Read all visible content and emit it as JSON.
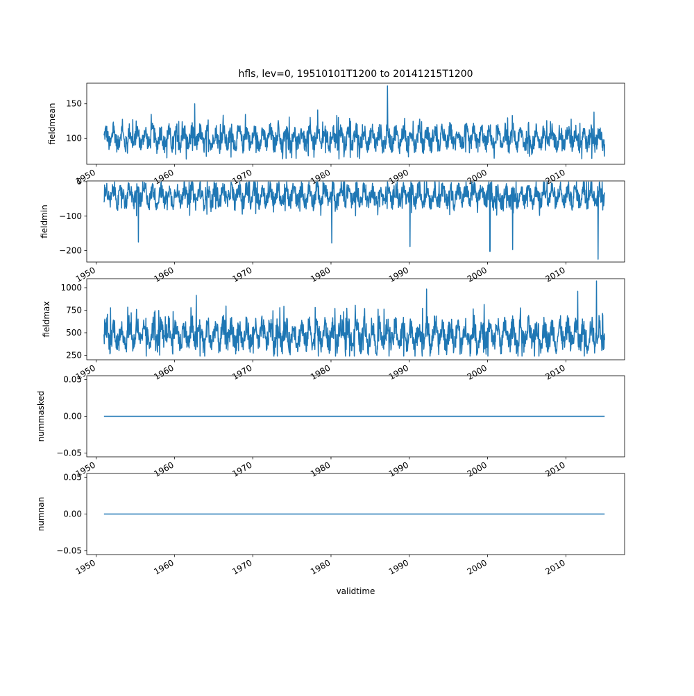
{
  "figure": {
    "title": "hfls, lev=0, 19510101T1200 to 20141215T1200",
    "xlabel": "validtime",
    "line_color": "#1f77b4"
  },
  "chart_data": [
    {
      "type": "line",
      "ylabel": "fieldmean",
      "xlim": [
        1948.8,
        2017.5
      ],
      "ylim": [
        62,
        180
      ],
      "yticks": [
        "100",
        "150"
      ],
      "ytick_values": [
        100,
        150
      ],
      "xticks": [
        "1950",
        "1960",
        "1970",
        "1980",
        "1990",
        "2000",
        "2010"
      ],
      "xtick_values": [
        1950,
        1960,
        1970,
        1980,
        1990,
        2000,
        2010
      ],
      "x_range": [
        1951.0,
        2014.95
      ],
      "series_summary": {
        "typical_low": 82,
        "typical_high": 118,
        "min": 66,
        "max": 176
      },
      "spikes": [
        {
          "x": 1962.6,
          "y": 150
        },
        {
          "x": 1978.3,
          "y": 141
        },
        {
          "x": 1987.2,
          "y": 176
        },
        {
          "x": 2013.6,
          "y": 138
        }
      ]
    },
    {
      "type": "line",
      "ylabel": "fieldmin",
      "xlim": [
        1948.8,
        2017.5
      ],
      "ylim": [
        -233,
        2
      ],
      "yticks": [
        "−200",
        "−100",
        "0"
      ],
      "ytick_values": [
        -200,
        -100,
        0
      ],
      "xticks": [
        "1950",
        "1960",
        "1970",
        "1980",
        "1990",
        "2000",
        "2010"
      ],
      "xtick_values": [
        1950,
        1960,
        1970,
        1980,
        1990,
        2000,
        2010
      ],
      "x_range": [
        1951.0,
        2014.95
      ],
      "series_summary": {
        "typical_low": -75,
        "typical_high": -5,
        "min": -225,
        "max": -1
      },
      "spikes": [
        {
          "x": 1955.4,
          "y": -175
        },
        {
          "x": 1980.1,
          "y": -178
        },
        {
          "x": 1990.1,
          "y": -188
        },
        {
          "x": 2000.3,
          "y": -202
        },
        {
          "x": 2003.2,
          "y": -197
        },
        {
          "x": 2014.1,
          "y": -225
        }
      ]
    },
    {
      "type": "line",
      "ylabel": "fieldmax",
      "xlim": [
        1948.8,
        2017.5
      ],
      "ylim": [
        200,
        1100
      ],
      "yticks": [
        "250",
        "500",
        "750",
        "1000"
      ],
      "ytick_values": [
        250,
        500,
        750,
        1000
      ],
      "xticks": [
        "1950",
        "1960",
        "1970",
        "1980",
        "1990",
        "2000",
        "2010"
      ],
      "xtick_values": [
        1950,
        1960,
        1970,
        1980,
        1990,
        2000,
        2010
      ],
      "x_range": [
        1951.0,
        2014.95
      ],
      "series_summary": {
        "typical_low": 300,
        "typical_high": 650,
        "min": 240,
        "max": 1075
      },
      "spikes": [
        {
          "x": 1962.8,
          "y": 915
        },
        {
          "x": 1992.2,
          "y": 985
        },
        {
          "x": 2011.5,
          "y": 960
        },
        {
          "x": 2013.9,
          "y": 1075
        }
      ]
    },
    {
      "type": "line",
      "ylabel": "nummasked",
      "xlim": [
        1948.8,
        2017.5
      ],
      "ylim": [
        -0.055,
        0.055
      ],
      "yticks": [
        "−0.05",
        "0.00",
        "0.05"
      ],
      "ytick_values": [
        -0.05,
        0,
        0.05
      ],
      "xticks": [
        "1950",
        "1960",
        "1970",
        "1980",
        "1990",
        "2000",
        "2010"
      ],
      "xtick_values": [
        1950,
        1960,
        1970,
        1980,
        1990,
        2000,
        2010
      ],
      "x": [
        1951.0,
        2014.95
      ],
      "y": [
        0,
        0
      ]
    },
    {
      "type": "line",
      "ylabel": "numnan",
      "xlim": [
        1948.8,
        2017.5
      ],
      "ylim": [
        -0.055,
        0.055
      ],
      "yticks": [
        "−0.05",
        "0.00",
        "0.05"
      ],
      "ytick_values": [
        -0.05,
        0,
        0.05
      ],
      "xticks": [
        "1950",
        "1960",
        "1970",
        "1980",
        "1990",
        "2000",
        "2010"
      ],
      "xtick_values": [
        1950,
        1960,
        1970,
        1980,
        1990,
        2000,
        2010
      ],
      "x": [
        1951.0,
        2014.95
      ],
      "y": [
        0,
        0
      ]
    }
  ]
}
